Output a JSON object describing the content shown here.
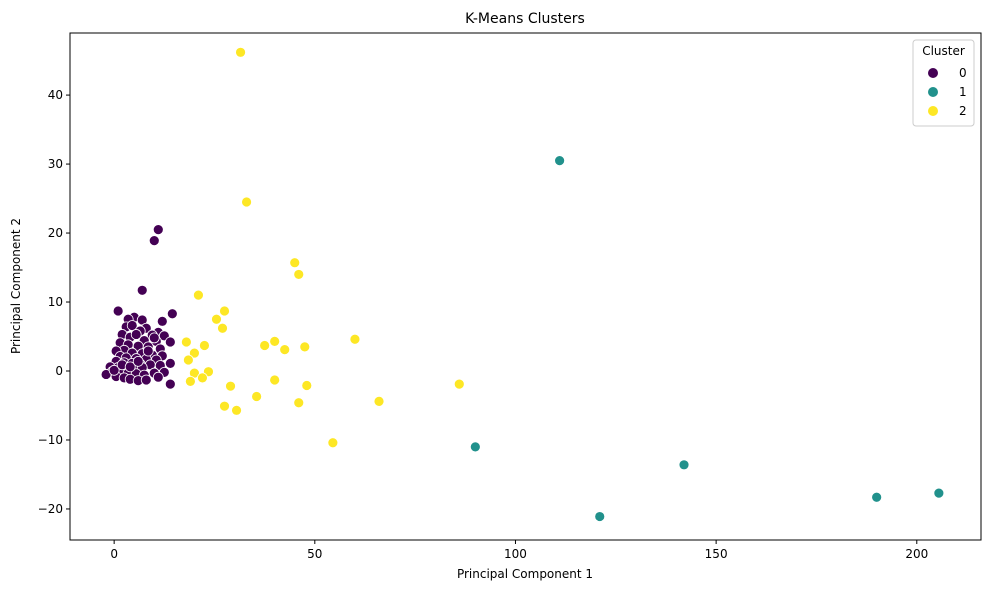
{
  "chart_data": {
    "type": "scatter",
    "title": "K-Means Clusters",
    "xlabel": "Principal Component 1",
    "ylabel": "Principal Component 2",
    "xlim": [
      -11,
      216
    ],
    "ylim": [
      -24.5,
      49
    ],
    "xticks": [
      0,
      50,
      100,
      150,
      200
    ],
    "yticks": [
      -20,
      -10,
      0,
      10,
      20,
      30,
      40
    ],
    "grid": false,
    "legend": {
      "title": "Cluster",
      "placement": "top-right"
    },
    "series": [
      {
        "name": "0",
        "color": "#440154",
        "points": [
          [
            11,
            20.5
          ],
          [
            10,
            18.9
          ],
          [
            7,
            11.7
          ],
          [
            1,
            8.7
          ],
          [
            14.5,
            8.3
          ],
          [
            5,
            7.8
          ],
          [
            3.5,
            7.5
          ],
          [
            7,
            7.4
          ],
          [
            12,
            7.2
          ],
          [
            3,
            6.4
          ],
          [
            4.5,
            6.6
          ],
          [
            8,
            6.2
          ],
          [
            6.5,
            5.8
          ],
          [
            11,
            5.6
          ],
          [
            2,
            5.3
          ],
          [
            9.5,
            5.2
          ],
          [
            12.5,
            5.1
          ],
          [
            4,
            4.9
          ],
          [
            7.5,
            4.4
          ],
          [
            10.5,
            4.3
          ],
          [
            14,
            4.2
          ],
          [
            1.5,
            4.1
          ],
          [
            3.5,
            3.8
          ],
          [
            6,
            3.6
          ],
          [
            8.5,
            3.5
          ],
          [
            11.5,
            3.2
          ],
          [
            2.5,
            3.0
          ],
          [
            0.5,
            2.9
          ],
          [
            4.5,
            2.6
          ],
          [
            7,
            2.5
          ],
          [
            9.5,
            2.3
          ],
          [
            12,
            2.2
          ],
          [
            1.5,
            2.1
          ],
          [
            3,
            1.9
          ],
          [
            5.5,
            1.8
          ],
          [
            8,
            1.7
          ],
          [
            10.5,
            1.6
          ],
          [
            0.5,
            1.4
          ],
          [
            2.5,
            1.2
          ],
          [
            4.5,
            1.1
          ],
          [
            6.5,
            1.0
          ],
          [
            9,
            0.9
          ],
          [
            11.5,
            0.8
          ],
          [
            14,
            1.1
          ],
          [
            -1,
            0.6
          ],
          [
            1,
            0.5
          ],
          [
            3,
            0.4
          ],
          [
            5,
            0.3
          ],
          [
            7,
            0.5
          ],
          [
            -0.5,
            -0.1
          ],
          [
            1.5,
            -0.2
          ],
          [
            3.5,
            -0.3
          ],
          [
            5.5,
            -0.4
          ],
          [
            7.5,
            -0.6
          ],
          [
            10,
            -0.3
          ],
          [
            12.5,
            -0.2
          ],
          [
            -2,
            -0.5
          ],
          [
            0.5,
            -0.8
          ],
          [
            2.5,
            -1.0
          ],
          [
            4,
            -1.2
          ],
          [
            6,
            -1.4
          ],
          [
            8,
            -1.3
          ],
          [
            14,
            -1.9
          ],
          [
            11,
            -0.9
          ],
          [
            0,
            0.1
          ],
          [
            2,
            0.9
          ],
          [
            4,
            0.6
          ],
          [
            6,
            1.4
          ],
          [
            8.5,
            2.9
          ],
          [
            10,
            4.8
          ],
          [
            5.5,
            5.3
          ]
        ]
      },
      {
        "name": "1",
        "color": "#21918c",
        "points": [
          [
            111,
            30.5
          ],
          [
            90,
            -11
          ],
          [
            142,
            -13.6
          ],
          [
            121,
            -21.1
          ],
          [
            190,
            -18.3
          ],
          [
            205.5,
            -17.7
          ]
        ]
      },
      {
        "name": "2",
        "color": "#fde725",
        "points": [
          [
            31.5,
            46.2
          ],
          [
            33,
            24.5
          ],
          [
            45,
            15.7
          ],
          [
            46,
            14
          ],
          [
            21,
            11
          ],
          [
            27.5,
            8.7
          ],
          [
            25.5,
            7.5
          ],
          [
            27,
            6.2
          ],
          [
            60,
            4.6
          ],
          [
            18,
            4.2
          ],
          [
            40,
            4.3
          ],
          [
            37.5,
            3.7
          ],
          [
            22.5,
            3.7
          ],
          [
            47.5,
            3.5
          ],
          [
            42.5,
            3.1
          ],
          [
            20,
            2.6
          ],
          [
            18.5,
            1.6
          ],
          [
            20,
            -0.3
          ],
          [
            23.5,
            -0.1
          ],
          [
            22,
            -1.0
          ],
          [
            19,
            -1.5
          ],
          [
            40,
            -1.3
          ],
          [
            86,
            -1.9
          ],
          [
            48,
            -2.1
          ],
          [
            29,
            -2.2
          ],
          [
            35.5,
            -3.7
          ],
          [
            46,
            -4.6
          ],
          [
            66,
            -4.4
          ],
          [
            27.5,
            -5.1
          ],
          [
            30.5,
            -5.7
          ],
          [
            54.5,
            -10.4
          ]
        ]
      }
    ]
  }
}
